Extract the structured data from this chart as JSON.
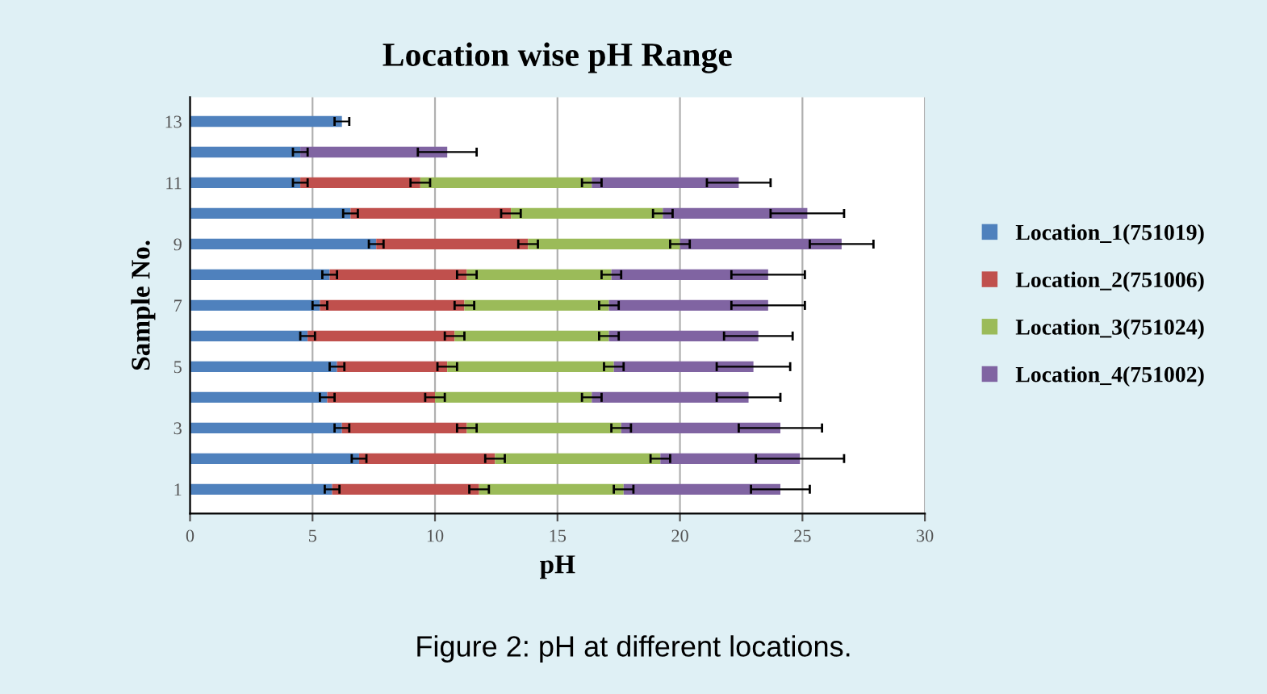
{
  "chart_data": {
    "type": "bar",
    "orientation": "horizontal",
    "stacked": true,
    "title": "Location wise pH Range",
    "xlabel": "pH",
    "ylabel": "Sample No.",
    "annotations": [
      "Figure 2: pH at different locations."
    ],
    "categories": [
      "13",
      null,
      "11",
      null,
      "9",
      null,
      "7",
      null,
      "5",
      null,
      "3",
      null,
      "1"
    ],
    "series": [
      {
        "name": "Location_1(751019)",
        "color": "#4f81bd",
        "values": [
          6.2,
          4.5,
          4.5,
          6.55,
          7.6,
          5.7,
          5.3,
          4.8,
          6.0,
          5.6,
          6.2,
          6.9,
          5.8
        ],
        "errors": [
          0.3,
          0.3,
          0.3,
          0.3,
          0.3,
          0.3,
          0.3,
          0.3,
          0.3,
          0.3,
          0.3,
          0.3,
          0.3
        ]
      },
      {
        "name": "Location_2(751006)",
        "color": "#c0504d",
        "values": [
          null,
          null,
          4.9,
          6.55,
          6.2,
          5.6,
          5.9,
          6.0,
          4.5,
          4.4,
          5.1,
          5.55,
          6.0
        ],
        "errors": [
          null,
          null,
          0.4,
          0.4,
          0.4,
          0.4,
          0.4,
          0.4,
          0.4,
          0.4,
          0.4,
          0.4,
          0.4
        ]
      },
      {
        "name": "Location_3(751024)",
        "color": "#9bbb59",
        "values": [
          null,
          null,
          7.0,
          6.2,
          6.2,
          5.9,
          5.9,
          6.3,
          6.8,
          6.4,
          6.3,
          6.75,
          5.9
        ],
        "errors": [
          null,
          null,
          0.4,
          0.4,
          0.4,
          0.4,
          0.4,
          0.4,
          0.4,
          0.4,
          0.4,
          0.4,
          0.4
        ]
      },
      {
        "name": "Location_4(751002)",
        "color": "#8064a2",
        "values": [
          null,
          6.0,
          6.0,
          5.9,
          6.6,
          6.4,
          6.5,
          6.1,
          5.7,
          6.4,
          6.5,
          5.7,
          6.4
        ],
        "errors": [
          null,
          1.2,
          1.3,
          1.5,
          1.3,
          1.5,
          1.5,
          1.4,
          1.5,
          1.3,
          1.7,
          1.8,
          1.2
        ]
      }
    ],
    "xlim": [
      0,
      30
    ],
    "xticks": [
      0,
      5,
      10,
      15,
      20,
      25,
      30
    ],
    "grid": "x",
    "legend": "right"
  }
}
